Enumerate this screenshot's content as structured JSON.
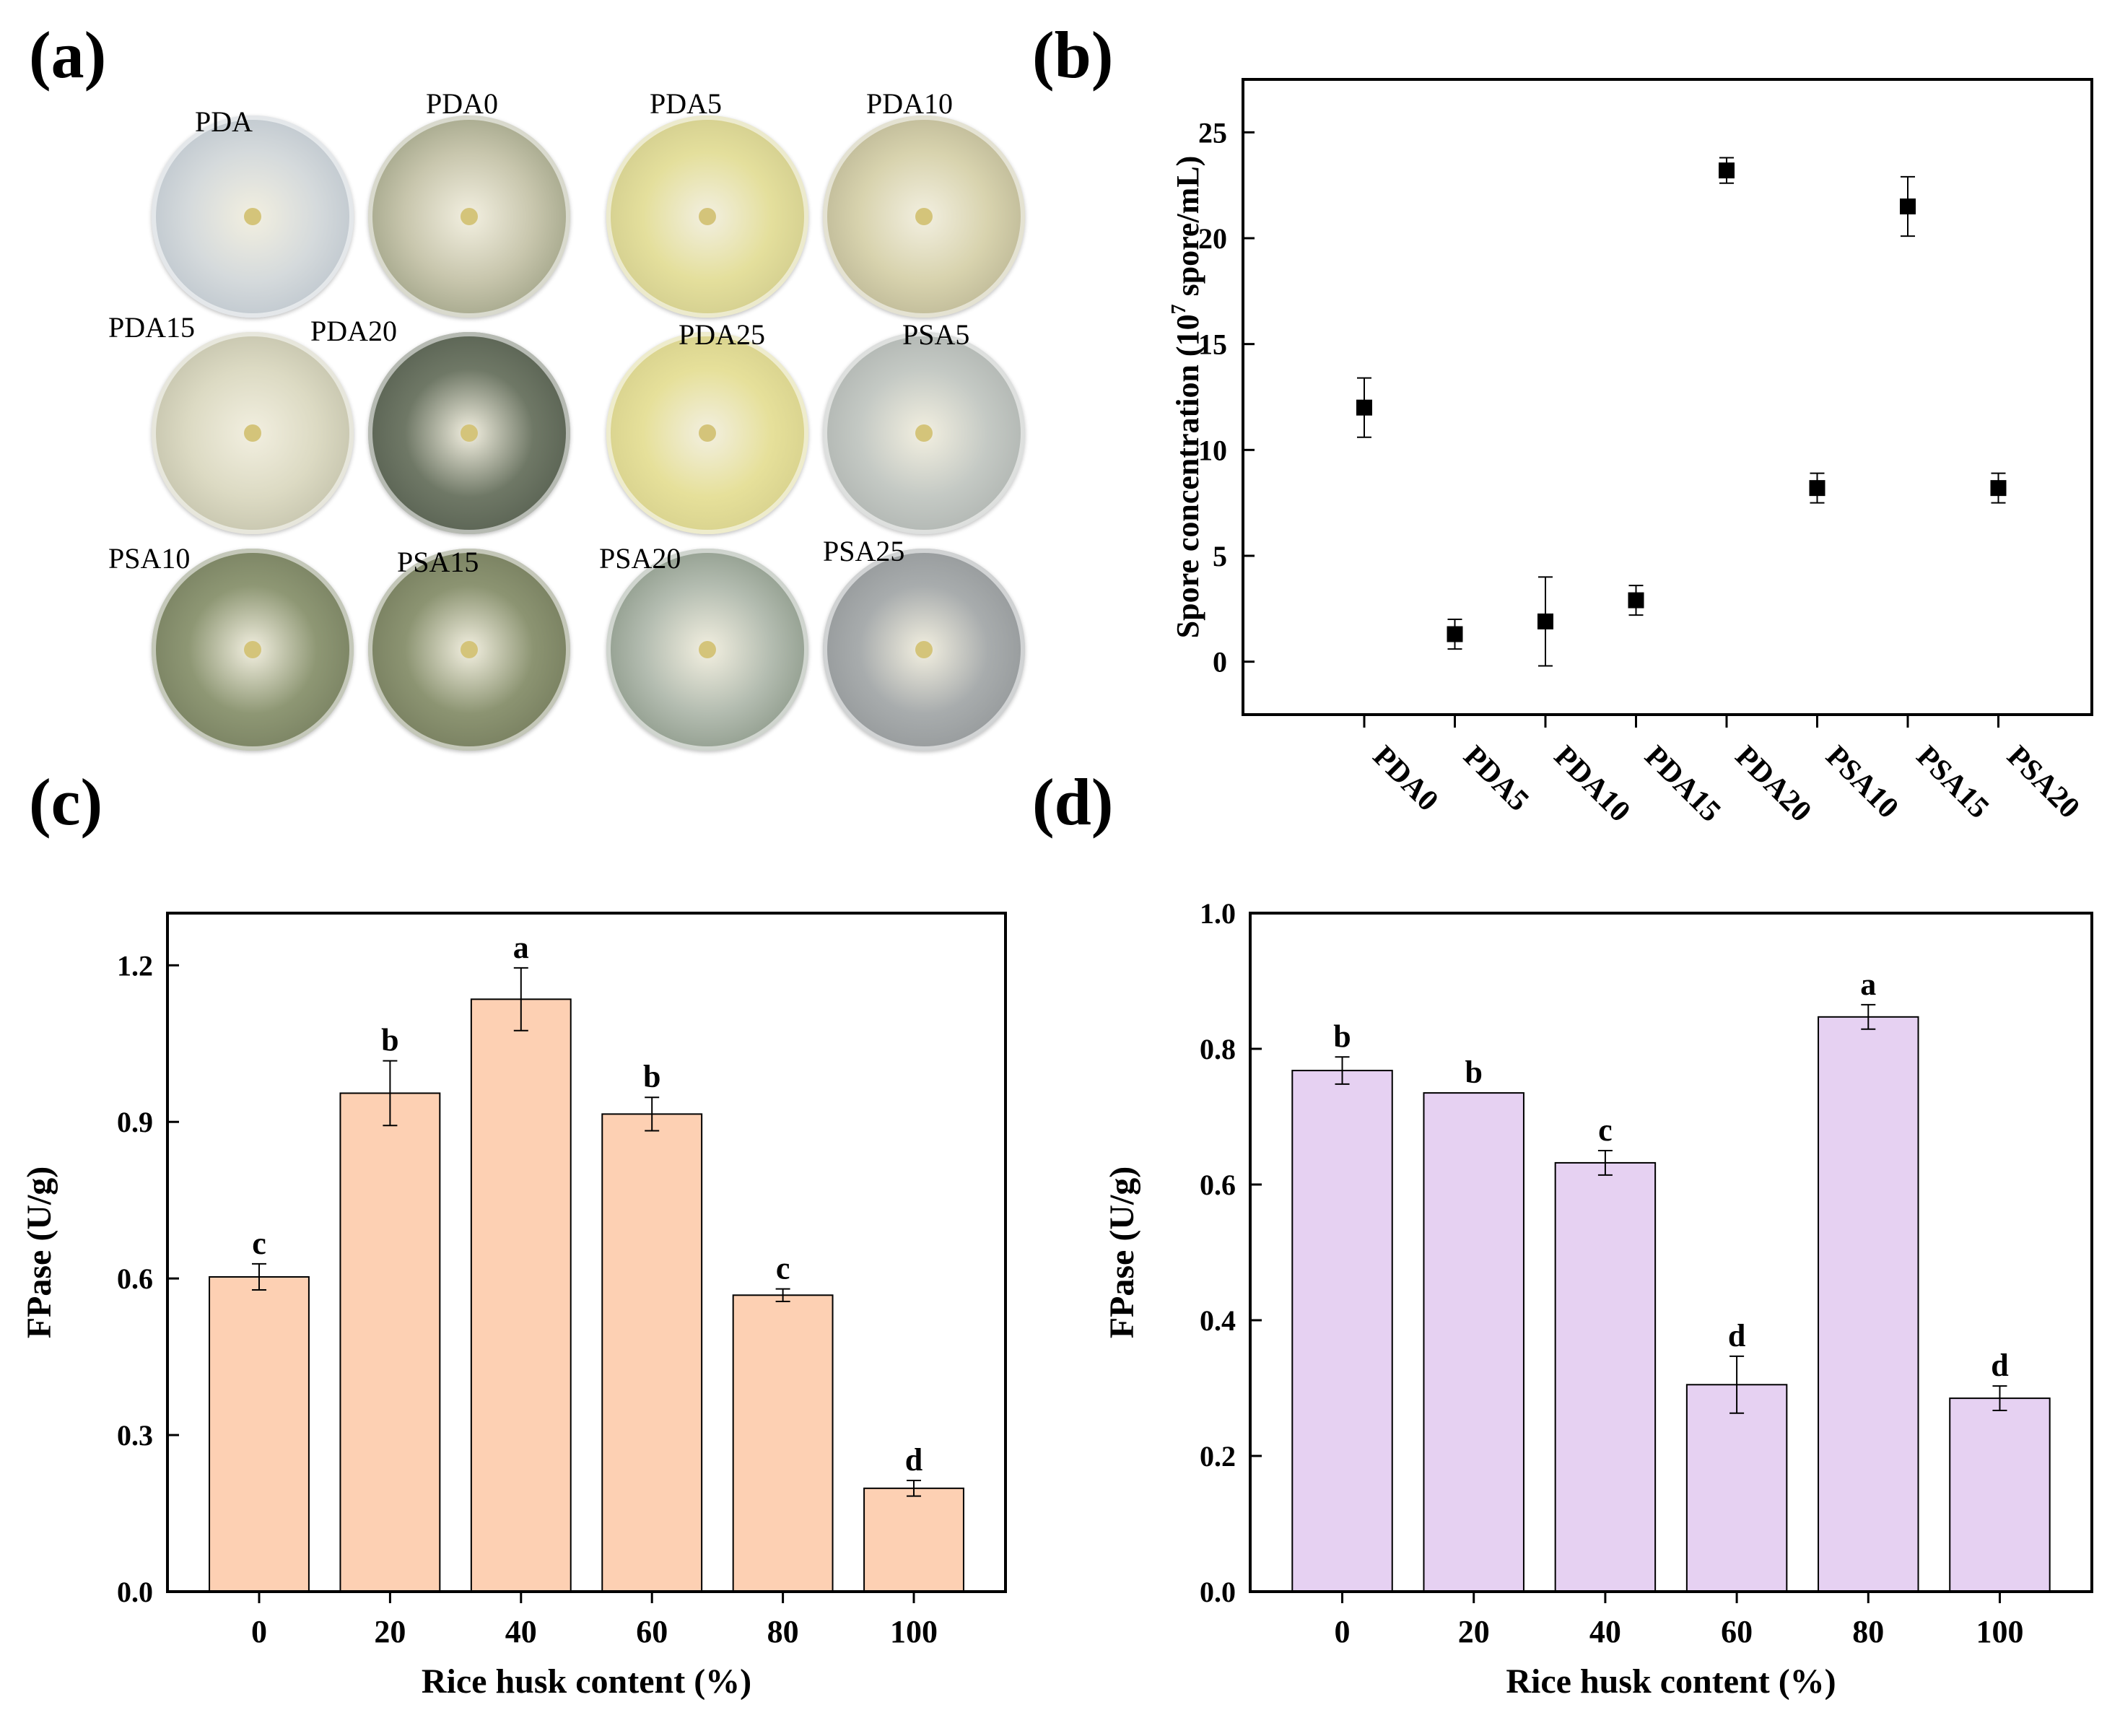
{
  "panel_labels": {
    "a": "(a)",
    "b": "(b)",
    "c": "(c)",
    "d": "(d)"
  },
  "plates": [
    {
      "label": "PDA",
      "color": "#d5dadc",
      "edge": "#b3bdc7"
    },
    {
      "label": "PDA0",
      "color": "#c8c6ad",
      "edge": "#8f9477"
    },
    {
      "label": "PDA5",
      "color": "#e4df9c",
      "edge": "#c9c487"
    },
    {
      "label": "PDA10",
      "color": "#d8d3ae",
      "edge": "#b0ab8b"
    },
    {
      "label": "PDA15",
      "color": "#dcdac3",
      "edge": "#b9b8a1"
    },
    {
      "label": "PDA20",
      "color": "#6f7866",
      "edge": "#4d5648"
    },
    {
      "label": "PDA25",
      "color": "#e6e09a",
      "edge": "#cfc986"
    },
    {
      "label": "PSA5",
      "color": "#c4c9c4",
      "edge": "#a6aba8"
    },
    {
      "label": "PSA10",
      "color": "#8e9774",
      "edge": "#6e7658"
    },
    {
      "label": "PSA15",
      "color": "#8c9472",
      "edge": "#6c7355"
    },
    {
      "label": "PSA20",
      "color": "#b3bcb0",
      "edge": "#7c8a79"
    },
    {
      "label": "PSA25",
      "color": "#a8acad",
      "edge": "#8b8f91"
    }
  ],
  "chart_data": [
    {
      "id": "b",
      "type": "scatter",
      "title": "",
      "xlabel": "",
      "ylabel_prefix": "Spore concentration (10",
      "ylabel_sup": "7",
      "ylabel_suffix": " spore/mL)",
      "categories": [
        "PDA0",
        "PDA5",
        "PDA10",
        "PDA15",
        "PDA20",
        "PSA10",
        "PSA15",
        "PSA20"
      ],
      "values": [
        12.0,
        1.3,
        1.9,
        2.9,
        23.2,
        8.2,
        21.5,
        8.2
      ],
      "errors": [
        1.4,
        0.7,
        2.1,
        0.7,
        0.6,
        0.7,
        1.4,
        0.7
      ],
      "ylim": [
        -2.5,
        27.5
      ],
      "yticks": [
        0,
        5,
        10,
        15,
        20,
        25
      ],
      "ytick_labels": [
        "0",
        "5",
        "10",
        "15",
        "20",
        "25"
      ]
    },
    {
      "id": "c",
      "type": "bar",
      "title": "",
      "xlabel": "Rice husk content (%)",
      "ylabel": "FPase (U/g)",
      "categories": [
        "0",
        "20",
        "40",
        "60",
        "80",
        "100"
      ],
      "values": [
        0.603,
        0.955,
        1.135,
        0.915,
        0.568,
        0.198
      ],
      "errors": [
        0.025,
        0.062,
        0.06,
        0.032,
        0.012,
        0.015
      ],
      "letters": [
        "c",
        "b",
        "a",
        "b",
        "c",
        "d"
      ],
      "ylim": [
        0,
        1.3
      ],
      "yticks": [
        0,
        0.3,
        0.6,
        0.9,
        1.2
      ],
      "ytick_labels": [
        "0.0",
        "0.3",
        "0.6",
        "0.9",
        "1.2"
      ],
      "bar_color": "#fdd0b3"
    },
    {
      "id": "d",
      "type": "bar",
      "title": "",
      "xlabel": "Rice husk content (%)",
      "ylabel": "FPase (U/g)",
      "categories": [
        "0",
        "20",
        "40",
        "60",
        "80",
        "100"
      ],
      "values": [
        0.768,
        0.735,
        0.632,
        0.305,
        0.847,
        0.285
      ],
      "errors": [
        0.02,
        0.0,
        0.018,
        0.042,
        0.018,
        0.018
      ],
      "letters": [
        "b",
        "b",
        "c",
        "d",
        "a",
        "d"
      ],
      "ylim": [
        0,
        1.0
      ],
      "yticks": [
        0,
        0.2,
        0.4,
        0.6,
        0.8,
        1.0
      ],
      "ytick_labels": [
        "0.0",
        "0.2",
        "0.4",
        "0.6",
        "0.8",
        "1.0"
      ],
      "bar_color": "#e6d1f2"
    }
  ]
}
